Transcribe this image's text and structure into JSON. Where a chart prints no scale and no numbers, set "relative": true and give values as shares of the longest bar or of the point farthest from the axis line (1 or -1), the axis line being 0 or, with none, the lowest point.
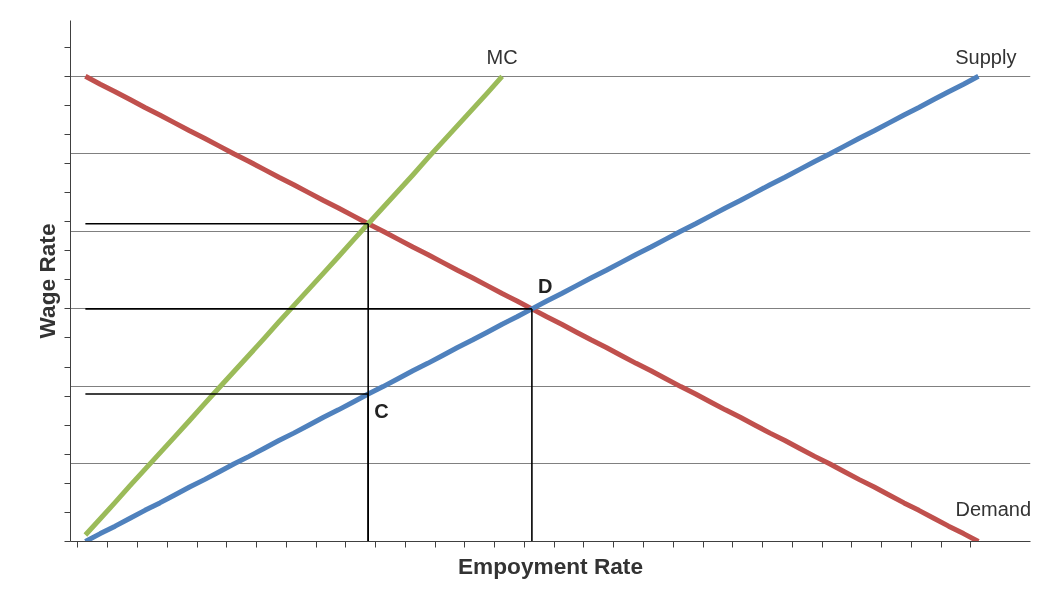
{
  "chart_data": {
    "type": "line",
    "relative": true,
    "xlabel": "Empoyment Rate",
    "ylabel": "Wage Rate",
    "grid": "y",
    "legend": false,
    "categories": [
      null,
      null,
      null,
      null,
      null,
      null,
      null,
      null,
      null,
      null,
      null,
      null,
      null,
      null,
      null,
      null,
      null,
      null,
      null,
      null,
      null,
      null,
      null,
      null,
      null,
      null,
      null,
      null,
      null,
      null,
      null,
      null,
      null,
      null,
      null,
      null,
      null,
      null,
      null,
      null,
      null,
      null,
      null,
      null,
      null,
      null,
      null,
      null,
      null,
      null,
      null,
      null,
      null,
      null,
      null,
      null,
      null,
      null,
      null,
      null,
      null
    ],
    "series": [
      {
        "name": "Demand",
        "color": "#c0504d",
        "values": [
          1,
          0.983,
          0.967,
          0.95,
          0.933,
          0.917,
          0.9,
          0.883,
          0.867,
          0.85,
          0.833,
          0.817,
          0.8,
          0.783,
          0.767,
          0.75,
          0.733,
          0.717,
          0.7,
          0.683,
          0.667,
          0.65,
          0.633,
          0.617,
          0.6,
          0.583,
          0.567,
          0.55,
          0.533,
          0.517,
          0.5,
          0.483,
          0.467,
          0.45,
          0.433,
          0.417,
          0.4,
          0.383,
          0.367,
          0.35,
          0.333,
          0.317,
          0.3,
          0.283,
          0.267,
          0.25,
          0.233,
          0.217,
          0.2,
          0.183,
          0.167,
          0.15,
          0.133,
          0.117,
          0.1,
          0.083,
          0.067,
          0.05,
          0.033,
          0.017,
          0
        ]
      },
      {
        "name": "Supply",
        "color": "#4f81bd",
        "values": [
          0,
          0.017,
          0.033,
          0.05,
          0.067,
          0.083,
          0.1,
          0.117,
          0.133,
          0.15,
          0.167,
          0.183,
          0.2,
          0.217,
          0.233,
          0.25,
          0.267,
          0.283,
          0.3,
          0.317,
          0.333,
          0.35,
          0.367,
          0.383,
          0.4,
          0.417,
          0.433,
          0.45,
          0.467,
          0.483,
          0.5,
          0.517,
          0.533,
          0.55,
          0.567,
          0.583,
          0.6,
          0.617,
          0.633,
          0.65,
          0.667,
          0.683,
          0.7,
          0.717,
          0.733,
          0.75,
          0.767,
          0.783,
          0.8,
          0.817,
          0.833,
          0.85,
          0.867,
          0.883,
          0.9,
          0.917,
          0.933,
          0.95,
          0.967,
          0.983,
          1
        ]
      },
      {
        "name": "MC",
        "color": "#9bbb59",
        "values": [
          0.014,
          0.049,
          0.084,
          0.12,
          0.155,
          0.19,
          0.225,
          0.26,
          0.296,
          0.331,
          0.366,
          0.401,
          0.436,
          0.472,
          0.507,
          0.542,
          0.577,
          0.612,
          0.648,
          0.683,
          0.718,
          0.753,
          0.788,
          0.824,
          0.859,
          0.894,
          0.929,
          0.964,
          1.0,
          null,
          null,
          null,
          null,
          null,
          null,
          null,
          null,
          null,
          null,
          null,
          null,
          null,
          null,
          null,
          null,
          null,
          null,
          null,
          null,
          null,
          null,
          null,
          null,
          null,
          null,
          null,
          null,
          null,
          null,
          null,
          null
        ]
      },
      {
        "color": "#000000",
        "values": [
          0.683,
          0.683,
          0.683,
          0.683,
          0.683,
          0.683,
          0.683,
          0.683,
          0.683,
          0.683,
          0.683,
          0.683,
          0.683,
          0.683,
          0.683,
          0.683,
          0.683,
          0.683,
          0.683,
          0.683,
          null,
          null,
          null,
          null,
          null,
          null,
          null,
          null,
          null,
          null,
          null,
          null,
          null,
          null,
          null,
          null,
          null,
          null,
          null,
          null,
          null,
          null,
          null,
          null,
          null,
          null,
          null,
          null,
          null,
          null,
          null,
          null,
          null,
          null,
          null,
          null,
          null,
          null,
          null,
          null,
          null
        ]
      },
      {
        "color": "#000000",
        "values": [
          0.5,
          0.5,
          0.5,
          0.5,
          0.5,
          0.5,
          0.5,
          0.5,
          0.5,
          0.5,
          0.5,
          0.5,
          0.5,
          0.5,
          0.5,
          0.5,
          0.5,
          0.5,
          0.5,
          0.5,
          0.5,
          0.5,
          0.5,
          0.5,
          0.5,
          0.5,
          0.5,
          0.5,
          0.5,
          0.5,
          0.5,
          null,
          null,
          null,
          null,
          null,
          null,
          null,
          null,
          null,
          null,
          null,
          null,
          null,
          null,
          null,
          null,
          null,
          null,
          null,
          null,
          null,
          null,
          null,
          null,
          null,
          null,
          null,
          null,
          null,
          null
        ]
      },
      {
        "color": "#000000",
        "values": [
          0.317,
          0.317,
          0.317,
          0.317,
          0.317,
          0.317,
          0.317,
          0.317,
          0.317,
          0.317,
          0.317,
          0.317,
          0.317,
          0.317,
          0.317,
          0.317,
          0.317,
          0.317,
          0.317,
          0.317,
          null,
          null,
          null,
          null,
          null,
          null,
          null,
          null,
          null,
          null,
          null,
          null,
          null,
          null,
          null,
          null,
          null,
          null,
          null,
          null,
          null,
          null,
          null,
          null,
          null,
          null,
          null,
          null,
          null,
          null,
          null,
          null,
          null,
          null,
          null,
          null,
          null,
          null,
          null,
          null,
          null
        ]
      }
    ],
    "annotations": [
      {
        "text": "C",
        "y": 0.317
      },
      {
        "text": "D",
        "y": 0.5
      }
    ]
  }
}
